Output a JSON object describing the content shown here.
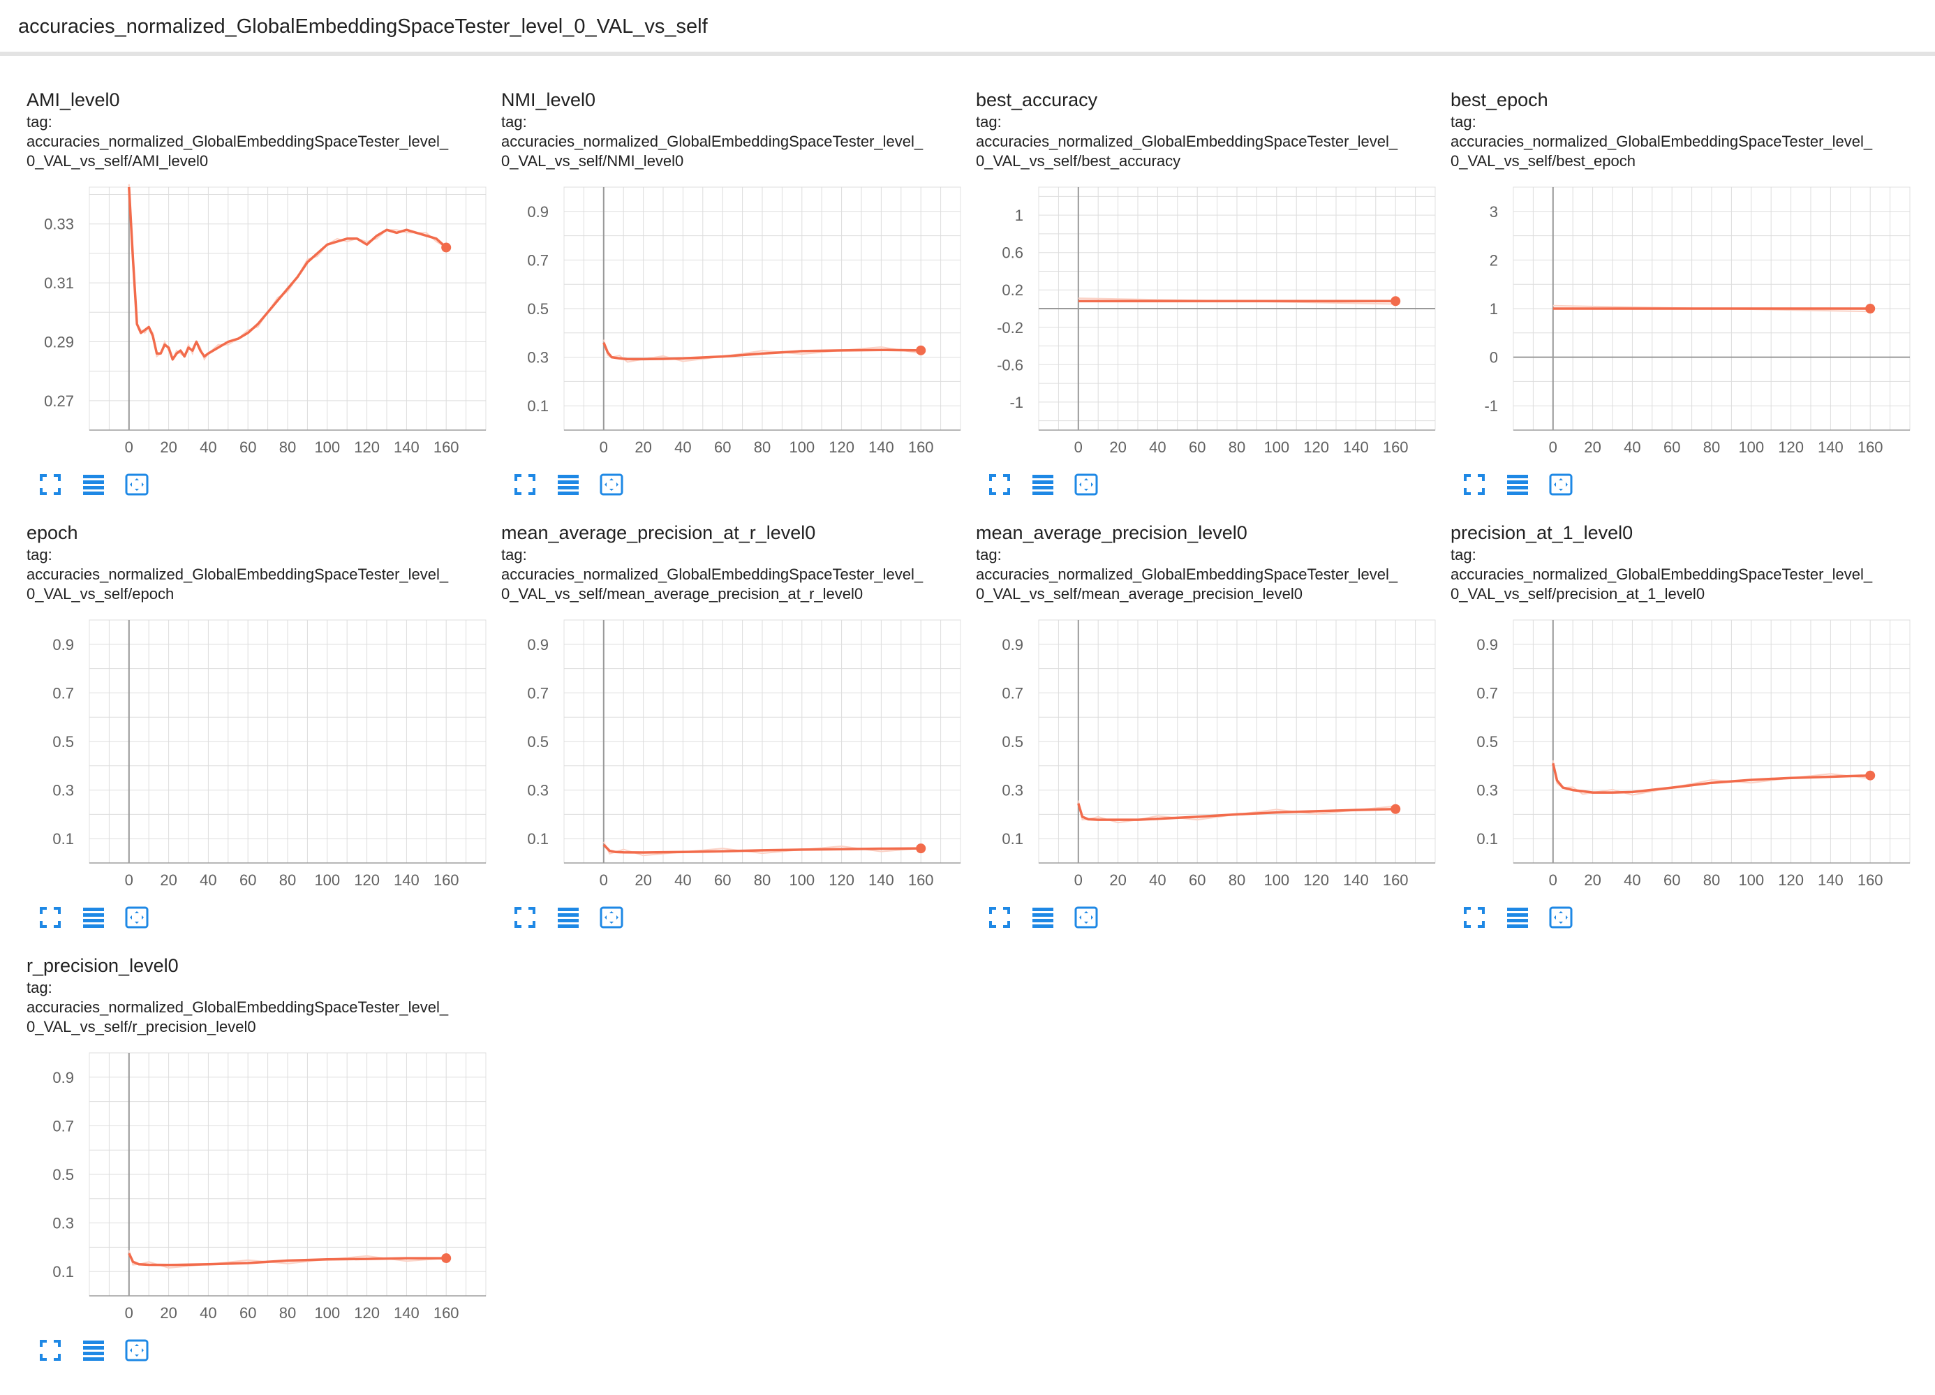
{
  "header": {
    "title": "accuracies_normalized_GlobalEmbeddingSpaceTester_level_0_VAL_vs_self"
  },
  "colors": {
    "line": "#f26b4b",
    "smoothed_raw": "#fbd2c6",
    "grid": "#dddddd",
    "axis": "#999999",
    "tool_icon": "#1e88e5"
  },
  "icons": [
    "fullscreen-icon",
    "list-lines-icon",
    "fit-domain-icon"
  ],
  "cards": [
    {
      "title": "AMI_level0",
      "tag_label": "tag:",
      "tag_line1": "accuracies_normalized_GlobalEmbeddingSpaceTester_level_",
      "tag_line2": "0_VAL_vs_self/AMI_level0"
    },
    {
      "title": "NMI_level0",
      "tag_label": "tag:",
      "tag_line1": "accuracies_normalized_GlobalEmbeddingSpaceTester_level_",
      "tag_line2": "0_VAL_vs_self/NMI_level0"
    },
    {
      "title": "best_accuracy",
      "tag_label": "tag:",
      "tag_line1": "accuracies_normalized_GlobalEmbeddingSpaceTester_level_",
      "tag_line2": "0_VAL_vs_self/best_accuracy"
    },
    {
      "title": "best_epoch",
      "tag_label": "tag:",
      "tag_line1": "accuracies_normalized_GlobalEmbeddingSpaceTester_level_",
      "tag_line2": "0_VAL_vs_self/best_epoch"
    },
    {
      "title": "epoch",
      "tag_label": "tag:",
      "tag_line1": "accuracies_normalized_GlobalEmbeddingSpaceTester_level_",
      "tag_line2": "0_VAL_vs_self/epoch"
    },
    {
      "title": "mean_average_precision_at_r_level0",
      "tag_label": "tag:",
      "tag_line1": "accuracies_normalized_GlobalEmbeddingSpaceTester_level_",
      "tag_line2": "0_VAL_vs_self/mean_average_precision_at_r_level0"
    },
    {
      "title": "mean_average_precision_level0",
      "tag_label": "tag:",
      "tag_line1": "accuracies_normalized_GlobalEmbeddingSpaceTester_level_",
      "tag_line2": "0_VAL_vs_self/mean_average_precision_level0"
    },
    {
      "title": "precision_at_1_level0",
      "tag_label": "tag:",
      "tag_line1": "accuracies_normalized_GlobalEmbeddingSpaceTester_level_",
      "tag_line2": "0_VAL_vs_self/precision_at_1_level0"
    },
    {
      "title": "r_precision_level0",
      "tag_label": "tag:",
      "tag_line1": "accuracies_normalized_GlobalEmbeddingSpaceTester_level_",
      "tag_line2": "0_VAL_vs_self/r_precision_level0"
    }
  ],
  "chart_data": [
    {
      "type": "line",
      "title": "AMI_level0",
      "xlim": [
        -20,
        180
      ],
      "ylim": [
        0.26,
        0.3425
      ],
      "xticks": [
        0,
        20,
        40,
        60,
        80,
        100,
        120,
        140,
        160
      ],
      "yticks": [
        0.27,
        0.29,
        0.31,
        0.33
      ],
      "ytick_labels": [
        "0.27",
        "0.29",
        "0.31",
        "0.33"
      ],
      "series": [
        {
          "x": [
            0,
            2,
            4,
            6,
            8,
            10,
            12,
            14,
            16,
            18,
            20,
            22,
            24,
            26,
            28,
            30,
            32,
            34,
            36,
            38,
            40,
            45,
            50,
            55,
            60,
            65,
            70,
            75,
            80,
            85,
            90,
            95,
            100,
            105,
            110,
            115,
            120,
            125,
            130,
            135,
            140,
            145,
            150,
            155,
            160
          ],
          "y": [
            0.345,
            0.318,
            0.296,
            0.293,
            0.294,
            0.295,
            0.292,
            0.286,
            0.286,
            0.289,
            0.288,
            0.284,
            0.286,
            0.287,
            0.285,
            0.288,
            0.287,
            0.29,
            0.287,
            0.285,
            0.286,
            0.288,
            0.29,
            0.291,
            0.293,
            0.296,
            0.3,
            0.304,
            0.308,
            0.312,
            0.317,
            0.32,
            0.323,
            0.324,
            0.325,
            0.325,
            0.323,
            0.326,
            0.328,
            0.327,
            0.328,
            0.327,
            0.326,
            0.325,
            0.322
          ]
        }
      ]
    },
    {
      "type": "line",
      "title": "NMI_level0",
      "xlim": [
        -20,
        180
      ],
      "ylim": [
        0,
        1
      ],
      "xticks": [
        0,
        20,
        40,
        60,
        80,
        100,
        120,
        140,
        160
      ],
      "yticks": [
        0.1,
        0.3,
        0.5,
        0.7,
        0.9
      ],
      "ytick_labels": [
        "0.1",
        "0.3",
        "0.5",
        "0.7",
        "0.9"
      ],
      "series": [
        {
          "x": [
            0,
            2,
            4,
            8,
            12,
            20,
            30,
            40,
            60,
            80,
            100,
            120,
            140,
            160
          ],
          "y": [
            0.36,
            0.32,
            0.3,
            0.295,
            0.292,
            0.292,
            0.293,
            0.295,
            0.303,
            0.315,
            0.325,
            0.328,
            0.33,
            0.328
          ]
        }
      ]
    },
    {
      "type": "line",
      "title": "best_accuracy",
      "xlim": [
        -20,
        180
      ],
      "ylim": [
        -1.3,
        1.3
      ],
      "xticks": [
        0,
        20,
        40,
        60,
        80,
        100,
        120,
        140,
        160
      ],
      "yticks": [
        -1,
        -0.6,
        -0.2,
        0.2,
        0.6,
        1
      ],
      "ytick_labels": [
        "-1",
        "-0.6",
        "-0.2",
        "0.2",
        "0.6",
        "1"
      ],
      "series": [
        {
          "x": [
            0,
            160
          ],
          "y": [
            0.08,
            0.08
          ]
        }
      ]
    },
    {
      "type": "line",
      "title": "best_epoch",
      "xlim": [
        -20,
        180
      ],
      "ylim": [
        -1.5,
        3.5
      ],
      "xticks": [
        0,
        20,
        40,
        60,
        80,
        100,
        120,
        140,
        160
      ],
      "yticks": [
        -1,
        0,
        1,
        2,
        3
      ],
      "ytick_labels": [
        "-1",
        "0",
        "1",
        "2",
        "3"
      ],
      "series": [
        {
          "x": [
            0,
            160
          ],
          "y": [
            1,
            1
          ]
        }
      ]
    },
    {
      "type": "line",
      "title": "epoch",
      "xlim": [
        -20,
        180
      ],
      "ylim": [
        0,
        1
      ],
      "xticks": [
        0,
        20,
        40,
        60,
        80,
        100,
        120,
        140,
        160
      ],
      "yticks": [
        0.1,
        0.3,
        0.5,
        0.7,
        0.9
      ],
      "ytick_labels": [
        "0.1",
        "0.3",
        "0.5",
        "0.7",
        "0.9"
      ],
      "series": []
    },
    {
      "type": "line",
      "title": "mean_average_precision_at_r_level0",
      "xlim": [
        -20,
        180
      ],
      "ylim": [
        0,
        1
      ],
      "xticks": [
        0,
        20,
        40,
        60,
        80,
        100,
        120,
        140,
        160
      ],
      "yticks": [
        0.1,
        0.3,
        0.5,
        0.7,
        0.9
      ],
      "ytick_labels": [
        "0.1",
        "0.3",
        "0.5",
        "0.7",
        "0.9"
      ],
      "series": [
        {
          "x": [
            0,
            3,
            6,
            10,
            20,
            40,
            60,
            80,
            100,
            120,
            140,
            160
          ],
          "y": [
            0.075,
            0.05,
            0.045,
            0.044,
            0.043,
            0.045,
            0.048,
            0.052,
            0.055,
            0.057,
            0.059,
            0.06
          ]
        }
      ]
    },
    {
      "type": "line",
      "title": "mean_average_precision_level0",
      "xlim": [
        -20,
        180
      ],
      "ylim": [
        0,
        1
      ],
      "xticks": [
        0,
        20,
        40,
        60,
        80,
        100,
        120,
        140,
        160
      ],
      "yticks": [
        0.1,
        0.3,
        0.5,
        0.7,
        0.9
      ],
      "ytick_labels": [
        "0.1",
        "0.3",
        "0.5",
        "0.7",
        "0.9"
      ],
      "series": [
        {
          "x": [
            0,
            2,
            5,
            10,
            20,
            30,
            40,
            60,
            80,
            100,
            120,
            140,
            160
          ],
          "y": [
            0.245,
            0.19,
            0.18,
            0.178,
            0.178,
            0.178,
            0.182,
            0.19,
            0.2,
            0.208,
            0.213,
            0.218,
            0.222
          ]
        }
      ]
    },
    {
      "type": "line",
      "title": "precision_at_1_level0",
      "xlim": [
        -20,
        180
      ],
      "ylim": [
        0,
        1
      ],
      "xticks": [
        0,
        20,
        40,
        60,
        80,
        100,
        120,
        140,
        160
      ],
      "yticks": [
        0.1,
        0.3,
        0.5,
        0.7,
        0.9
      ],
      "ytick_labels": [
        "0.1",
        "0.3",
        "0.5",
        "0.7",
        "0.9"
      ],
      "series": [
        {
          "x": [
            0,
            2,
            5,
            10,
            15,
            20,
            30,
            40,
            60,
            80,
            100,
            120,
            140,
            160
          ],
          "y": [
            0.41,
            0.34,
            0.31,
            0.3,
            0.295,
            0.29,
            0.29,
            0.292,
            0.31,
            0.33,
            0.342,
            0.35,
            0.355,
            0.36
          ]
        }
      ]
    },
    {
      "type": "line",
      "title": "r_precision_level0",
      "xlim": [
        -20,
        180
      ],
      "ylim": [
        0,
        1
      ],
      "xticks": [
        0,
        20,
        40,
        60,
        80,
        100,
        120,
        140,
        160
      ],
      "yticks": [
        0.1,
        0.3,
        0.5,
        0.7,
        0.9
      ],
      "ytick_labels": [
        "0.1",
        "0.3",
        "0.5",
        "0.7",
        "0.9"
      ],
      "series": [
        {
          "x": [
            0,
            2,
            5,
            10,
            20,
            40,
            60,
            80,
            100,
            120,
            140,
            160
          ],
          "y": [
            0.175,
            0.14,
            0.13,
            0.128,
            0.127,
            0.13,
            0.135,
            0.145,
            0.15,
            0.152,
            0.155,
            0.155
          ]
        }
      ]
    }
  ]
}
